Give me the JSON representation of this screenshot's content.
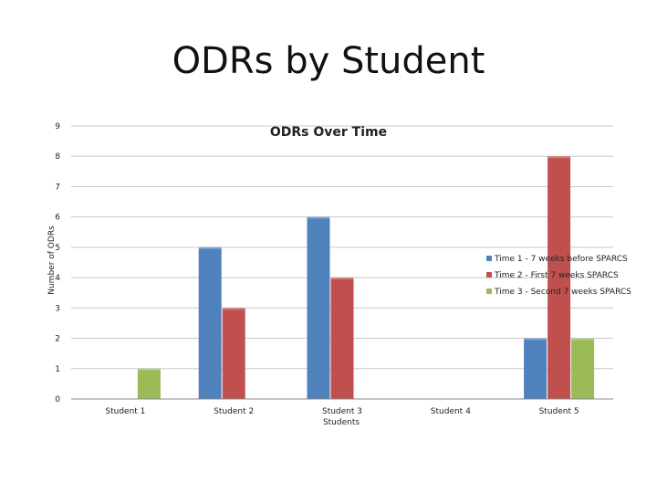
{
  "slide": {
    "title": "ODRs by Student"
  },
  "chart_data": {
    "type": "bar",
    "title": "ODRs Over Time",
    "xlabel": "Students",
    "ylabel": "Number of ODRs",
    "ylim": [
      0,
      9
    ],
    "yticks": [
      0,
      1,
      2,
      3,
      4,
      5,
      6,
      7,
      8,
      9
    ],
    "grid": true,
    "legend_position": "right",
    "categories": [
      "Student 1",
      "Student 2",
      "Student 3",
      "Student 4",
      "Student 5"
    ],
    "series": [
      {
        "name": "Time 1 - 7 weeks before SPARCS",
        "color": "#4F81BD",
        "values": [
          0,
          5,
          6,
          0,
          2
        ]
      },
      {
        "name": "Time 2 - First 7 weeks SPARCS",
        "color": "#C0504D",
        "values": [
          0,
          3,
          4,
          0,
          8
        ]
      },
      {
        "name": "Time 3 - Second 7 weeks SPARCS",
        "color": "#9BBB59",
        "values": [
          1,
          0,
          0,
          0,
          2
        ]
      }
    ]
  }
}
